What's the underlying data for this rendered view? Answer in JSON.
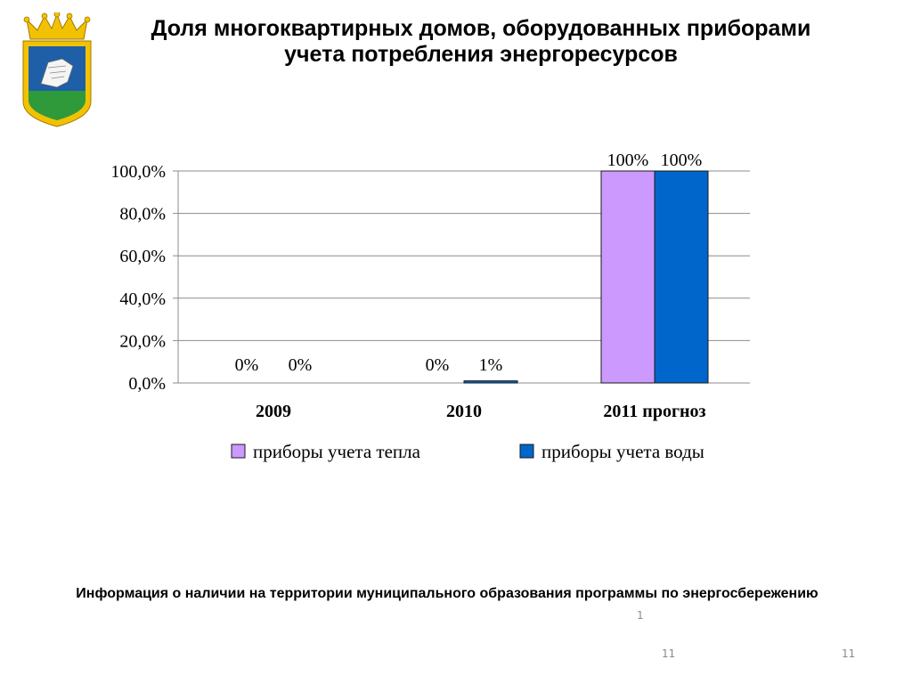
{
  "slide": {
    "title_line1": "Доля многоквартирных домов, оборудованных приборами",
    "title_line2": "учета потребления энергоресурсов",
    "footer_text": "Информация о наличии на территории муниципального образования программы по энергосбережению",
    "footnote_mark": "1",
    "page_number_left": "11",
    "page_number_right": "11"
  },
  "chart_data": {
    "type": "bar",
    "categories": [
      "2009",
      "2010",
      "2011 прогноз"
    ],
    "series": [
      {
        "name": "приборы учета тепла",
        "values": [
          0,
          0,
          100
        ],
        "labels": [
          "0%",
          "0%",
          "100%"
        ],
        "color": "#cc99ff"
      },
      {
        "name": "приборы учета воды",
        "values": [
          0,
          1,
          100
        ],
        "labels": [
          "0%",
          "1%",
          "100%"
        ],
        "color": "#0066cc"
      }
    ],
    "yticks": [
      "0,0%",
      "20,0%",
      "40,0%",
      "60,0%",
      "80,0%",
      "100,0%"
    ],
    "ylim": [
      0,
      100
    ],
    "grid": true,
    "legend": "bottom"
  }
}
